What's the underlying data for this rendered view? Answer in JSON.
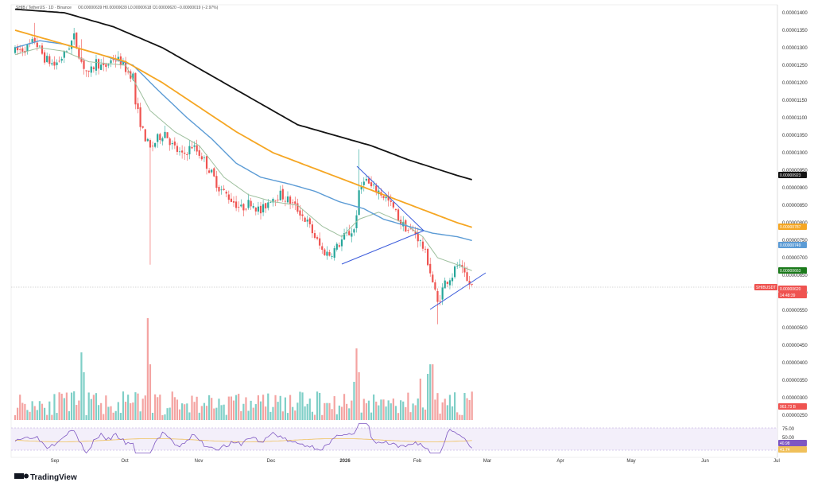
{
  "header": {
    "symbol": "SHIB / TetherUS · 1D · Binance",
    "ohlc": "O0.00000639 H0.00000639 L0.00000618 C0.00000620 −0.00000019 (−2.97%)"
  },
  "brand": "TradingView",
  "colors": {
    "up": "#26a69a",
    "down": "#ef5350",
    "upVol": "#7fcfc7",
    "downVol": "#f4a3a1",
    "ma200": "#131313",
    "ma100": "#f5a623",
    "ma50": "#5b9bd5",
    "ma20": "#9dbf9d",
    "trend": "#3b5bdb",
    "rsi": "#7e57c2",
    "rsiMa": "#f0c05a"
  },
  "tags": {
    "ma200": "0.00000923",
    "ma100": "0.00000787",
    "ma50": "0.00000749",
    "ma20": "0.00000663",
    "symbol": "SHIBUSDT",
    "price": "0.00000620",
    "countdown": "14:48:39",
    "volume": "963.73 B",
    "rsi": "40.98",
    "rsiMa": "41.74"
  },
  "chart_data": {
    "type": "candlestick",
    "y_ticks": [
      "0.00001400",
      "0.00001350",
      "0.00001300",
      "0.00001250",
      "0.00001200",
      "0.00001150",
      "0.00001100",
      "0.00001050",
      "0.00001000",
      "0.00000950",
      "0.00000900",
      "0.00000850",
      "0.00000800",
      "0.00000750",
      "0.00000700",
      "0.00000650",
      "0.00000600",
      "0.00000550",
      "0.00000500",
      "0.00000450",
      "0.00000400",
      "0.00000350",
      "0.00000300",
      "0.00000250"
    ],
    "x_ticks": [
      "Sep",
      "Oct",
      "Nov",
      "Dec",
      "2026",
      "Feb",
      "Mar",
      "Apr",
      "May",
      "Jun",
      "Jul"
    ],
    "price_anchors": [
      [
        0,
        1290
      ],
      [
        5,
        1300
      ],
      [
        8,
        1320
      ],
      [
        12,
        1270
      ],
      [
        16,
        1250
      ],
      [
        20,
        1280
      ],
      [
        24,
        1330
      ],
      [
        27,
        1260
      ],
      [
        30,
        1220
      ],
      [
        33,
        1260
      ],
      [
        36,
        1240
      ],
      [
        40,
        1270
      ],
      [
        43,
        1260
      ],
      [
        46,
        1230
      ],
      [
        48,
        1220
      ],
      [
        49,
        1140
      ],
      [
        52,
        1060
      ],
      [
        55,
        1010
      ],
      [
        58,
        1040
      ],
      [
        61,
        1060
      ],
      [
        64,
        1020
      ],
      [
        68,
        990
      ],
      [
        72,
        1020
      ],
      [
        76,
        990
      ],
      [
        80,
        940
      ],
      [
        83,
        900
      ],
      [
        86,
        880
      ],
      [
        89,
        860
      ],
      [
        92,
        840
      ],
      [
        96,
        860
      ],
      [
        100,
        830
      ],
      [
        104,
        870
      ],
      [
        108,
        880
      ],
      [
        112,
        860
      ],
      [
        116,
        830
      ],
      [
        119,
        800
      ],
      [
        122,
        760
      ],
      [
        125,
        720
      ],
      [
        128,
        710
      ],
      [
        131,
        730
      ],
      [
        134,
        760
      ],
      [
        138,
        780
      ],
      [
        140,
        880
      ],
      [
        142,
        930
      ],
      [
        145,
        900
      ],
      [
        148,
        890
      ],
      [
        151,
        870
      ],
      [
        154,
        840
      ],
      [
        157,
        800
      ],
      [
        160,
        780
      ],
      [
        163,
        770
      ],
      [
        166,
        730
      ],
      [
        168,
        690
      ],
      [
        170,
        630
      ],
      [
        172,
        570
      ],
      [
        175,
        630
      ],
      [
        178,
        650
      ],
      [
        180,
        680
      ],
      [
        182,
        660
      ],
      [
        184,
        630
      ],
      [
        186,
        620
      ]
    ],
    "ma_anchors": {
      "ma200": [
        [
          0,
          1410
        ],
        [
          20,
          1400
        ],
        [
          40,
          1360
        ],
        [
          60,
          1300
        ],
        [
          80,
          1220
        ],
        [
          100,
          1140
        ],
        [
          115,
          1080
        ],
        [
          130,
          1050
        ],
        [
          145,
          1020
        ],
        [
          160,
          980
        ],
        [
          180,
          935
        ],
        [
          186,
          923
        ]
      ],
      "ma100": [
        [
          0,
          1350
        ],
        [
          15,
          1320
        ],
        [
          30,
          1290
        ],
        [
          45,
          1260
        ],
        [
          60,
          1200
        ],
        [
          75,
          1130
        ],
        [
          90,
          1060
        ],
        [
          105,
          1000
        ],
        [
          120,
          960
        ],
        [
          135,
          920
        ],
        [
          150,
          880
        ],
        [
          165,
          840
        ],
        [
          180,
          800
        ],
        [
          186,
          787
        ]
      ],
      "ma50": [
        [
          0,
          1300
        ],
        [
          10,
          1320
        ],
        [
          20,
          1310
        ],
        [
          35,
          1280
        ],
        [
          48,
          1250
        ],
        [
          58,
          1180
        ],
        [
          70,
          1100
        ],
        [
          80,
          1040
        ],
        [
          90,
          970
        ],
        [
          100,
          930
        ],
        [
          112,
          910
        ],
        [
          122,
          890
        ],
        [
          132,
          860
        ],
        [
          142,
          840
        ],
        [
          150,
          810
        ],
        [
          160,
          790
        ],
        [
          170,
          770
        ],
        [
          180,
          760
        ],
        [
          186,
          749
        ]
      ],
      "ma20": [
        [
          0,
          1280
        ],
        [
          10,
          1300
        ],
        [
          20,
          1290
        ],
        [
          30,
          1260
        ],
        [
          45,
          1250
        ],
        [
          55,
          1120
        ],
        [
          65,
          1060
        ],
        [
          75,
          1020
        ],
        [
          85,
          930
        ],
        [
          95,
          880
        ],
        [
          105,
          860
        ],
        [
          115,
          850
        ],
        [
          125,
          790
        ],
        [
          133,
          760
        ],
        [
          140,
          810
        ],
        [
          148,
          830
        ],
        [
          158,
          800
        ],
        [
          166,
          760
        ],
        [
          172,
          700
        ],
        [
          180,
          680
        ],
        [
          186,
          663
        ]
      ]
    },
    "ylim": [
      2.5e-06,
      1.42e-05
    ]
  }
}
